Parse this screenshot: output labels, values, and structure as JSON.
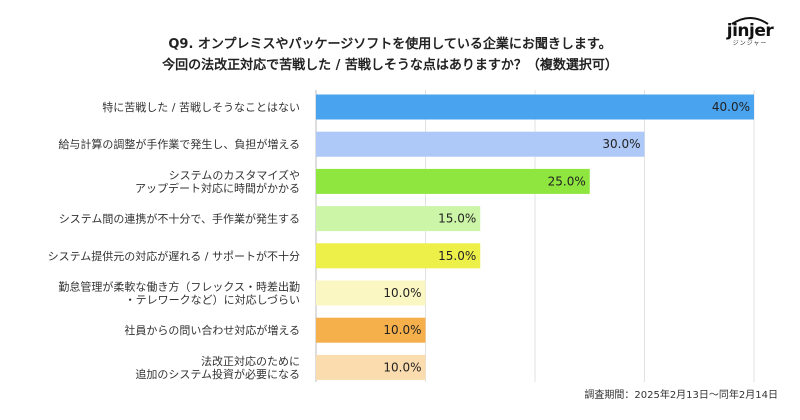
{
  "header": {
    "title_line1": "Q9. オンプレミスやパッケージソフトを使用している企業にお聞きします。",
    "title_line2": "今回の法改正対応で苦戦した / 苦戦しそうな点はありますか？（複数選択可）"
  },
  "logo": {
    "wordmark": "jinjer",
    "subtext": "ジンジャー"
  },
  "chart_data": {
    "type": "bar",
    "orientation": "horizontal",
    "categories": [
      [
        "特に苦戦した / 苦戦しそうなことはない"
      ],
      [
        "給与計算の調整が手作業で発生し、負担が増える"
      ],
      [
        "システムのカスタマイズや",
        "アップデート対応に時間がかかる"
      ],
      [
        "システム間の連携が不十分で、手作業が発生する"
      ],
      [
        "システム提供元の対応が遅れる / サポートが不十分"
      ],
      [
        "勤怠管理が柔軟な働き方（フレックス・時差出勤",
        "・テレワークなど）に対応しづらい"
      ],
      [
        "社員からの問い合わせ対応が増える"
      ],
      [
        "法改正対応のために",
        "追加のシステム投資が必要になる"
      ]
    ],
    "values": [
      40.0,
      30.0,
      25.0,
      15.0,
      15.0,
      10.0,
      10.0,
      10.0
    ],
    "value_labels": [
      "40.0%",
      "30.0%",
      "25.0%",
      "15.0%",
      "15.0%",
      "10.0%",
      "10.0%",
      "10.0%"
    ],
    "colors": [
      "#4aa3ee",
      "#aec8f7",
      "#8ee63f",
      "#ccf5a8",
      "#eef04a",
      "#fbf7c2",
      "#f5b04c",
      "#fbdcae"
    ],
    "xlim": [
      0,
      40
    ],
    "grid": true,
    "gridline_color": "#e2e2e2"
  },
  "footnote": "調査期間：2025年2月13日〜同年2月14日"
}
